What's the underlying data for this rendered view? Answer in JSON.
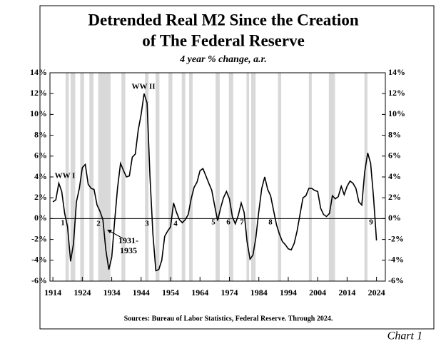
{
  "chart_data": {
    "type": "line",
    "title": "Detrended Real M2 Since the Creation",
    "title_line2": "of The Federal Reserve",
    "subtitle": "4 year % change, a.r.",
    "source": "Sources: Bureau of Labor Statistics, Federal Reserve.  Through 2024.",
    "chart_label": "Chart 1",
    "x": [
      1914,
      1915,
      1916,
      1917,
      1918,
      1919,
      1920,
      1921,
      1922,
      1923,
      1924,
      1925,
      1926,
      1927,
      1928,
      1929,
      1930,
      1931,
      1932,
      1933,
      1934,
      1935,
      1936,
      1937,
      1938,
      1939,
      1940,
      1941,
      1942,
      1943,
      1944,
      1945,
      1946,
      1947,
      1948,
      1949,
      1950,
      1951,
      1952,
      1953,
      1954,
      1955,
      1956,
      1957,
      1958,
      1959,
      1960,
      1961,
      1962,
      1963,
      1964,
      1965,
      1966,
      1967,
      1968,
      1969,
      1970,
      1971,
      1972,
      1973,
      1974,
      1975,
      1976,
      1977,
      1978,
      1979,
      1980,
      1981,
      1982,
      1983,
      1984,
      1985,
      1986,
      1987,
      1988,
      1989,
      1990,
      1991,
      1992,
      1993,
      1994,
      1995,
      1996,
      1997,
      1998,
      1999,
      2000,
      2001,
      2002,
      2003,
      2004,
      2005,
      2006,
      2007,
      2008,
      2009,
      2010,
      2011,
      2012,
      2013,
      2014,
      2015,
      2016,
      2017,
      2018,
      2019,
      2020,
      2021,
      2022,
      2023,
      2024
    ],
    "series": [
      {
        "name": "Detrended Real M2",
        "color": "#000000",
        "values": [
          1.6,
          1.8,
          3.4,
          2.6,
          0.5,
          -0.8,
          -4.1,
          -2.4,
          1.6,
          2.9,
          4.9,
          5.2,
          3.3,
          2.9,
          2.8,
          1.3,
          0.7,
          -0.1,
          -3.0,
          -4.9,
          -3.7,
          -0.2,
          3.0,
          5.3,
          4.6,
          4.0,
          4.1,
          5.9,
          6.2,
          8.5,
          10.0,
          12.0,
          11.1,
          4.0,
          -1.5,
          -5.0,
          -4.9,
          -4.0,
          -1.7,
          -1.2,
          -0.8,
          1.5,
          0.6,
          -0.1,
          -0.4,
          -0.1,
          0.4,
          1.9,
          3.0,
          3.5,
          4.6,
          4.8,
          4.1,
          3.4,
          2.7,
          1.2,
          -0.2,
          1.0,
          2.0,
          2.6,
          1.9,
          0.2,
          -0.5,
          0.3,
          1.5,
          0.6,
          -2.2,
          -3.9,
          -3.5,
          -1.8,
          0.7,
          2.9,
          4.0,
          2.8,
          2.2,
          0.8,
          -0.6,
          -1.5,
          -2.2,
          -2.5,
          -2.9,
          -3.0,
          -2.4,
          -1.2,
          0.4,
          2.0,
          2.2,
          2.9,
          2.9,
          2.7,
          2.6,
          1.0,
          0.4,
          0.2,
          0.5,
          2.2,
          1.9,
          2.1,
          3.1,
          2.3,
          3.1,
          3.6,
          3.4,
          2.9,
          1.6,
          1.3,
          4.5,
          6.3,
          5.3,
          2.0,
          -2.1
        ]
      }
    ],
    "recessions": [
      [
        1918.3,
        1919.4
      ],
      [
        1920.0,
        1921.6
      ],
      [
        1923.3,
        1924.6
      ],
      [
        1926.4,
        1927.8
      ],
      [
        1929.4,
        1933.6
      ],
      [
        1937.3,
        1938.6
      ],
      [
        1945.3,
        1946.5
      ],
      [
        1948.9,
        1950.2
      ],
      [
        1953.3,
        1954.6
      ],
      [
        1957.8,
        1959.0
      ],
      [
        1960.3,
        1961.5
      ],
      [
        1969.3,
        1970.7
      ],
      [
        1973.8,
        1975.3
      ],
      [
        1979.8,
        1980.7
      ],
      [
        1981.4,
        1982.9
      ],
      [
        1990.5,
        1991.6
      ],
      [
        2001.0,
        2002.0
      ],
      [
        2007.8,
        2009.9
      ],
      [
        2019.9,
        2020.9
      ]
    ],
    "recession_color": "#d9d9d9",
    "annotations": [
      "WW I",
      "WW II",
      "1931-",
      "1935",
      "1",
      "2",
      "3",
      "4",
      "5",
      "6",
      "7",
      "8",
      "9"
    ],
    "xlim": [
      1913,
      2027
    ],
    "ylim": [
      -6,
      14
    ],
    "xticks": [
      1914,
      1924,
      1934,
      1944,
      1954,
      1964,
      1974,
      1984,
      1994,
      2004,
      2014,
      2024
    ],
    "yticks": [
      {
        "value": -6,
        "label": "-6%"
      },
      {
        "value": -4,
        "label": "-4%"
      },
      {
        "value": -2,
        "label": "-2%"
      },
      {
        "value": 0,
        "label": "0%"
      },
      {
        "value": 2,
        "label": "2%"
      },
      {
        "value": 4,
        "label": "4%"
      },
      {
        "value": 6,
        "label": "6%"
      },
      {
        "value": 8,
        "label": "8%"
      },
      {
        "value": 10,
        "label": "10%"
      },
      {
        "value": 12,
        "label": "12%"
      },
      {
        "value": 14,
        "label": "14%"
      }
    ]
  }
}
